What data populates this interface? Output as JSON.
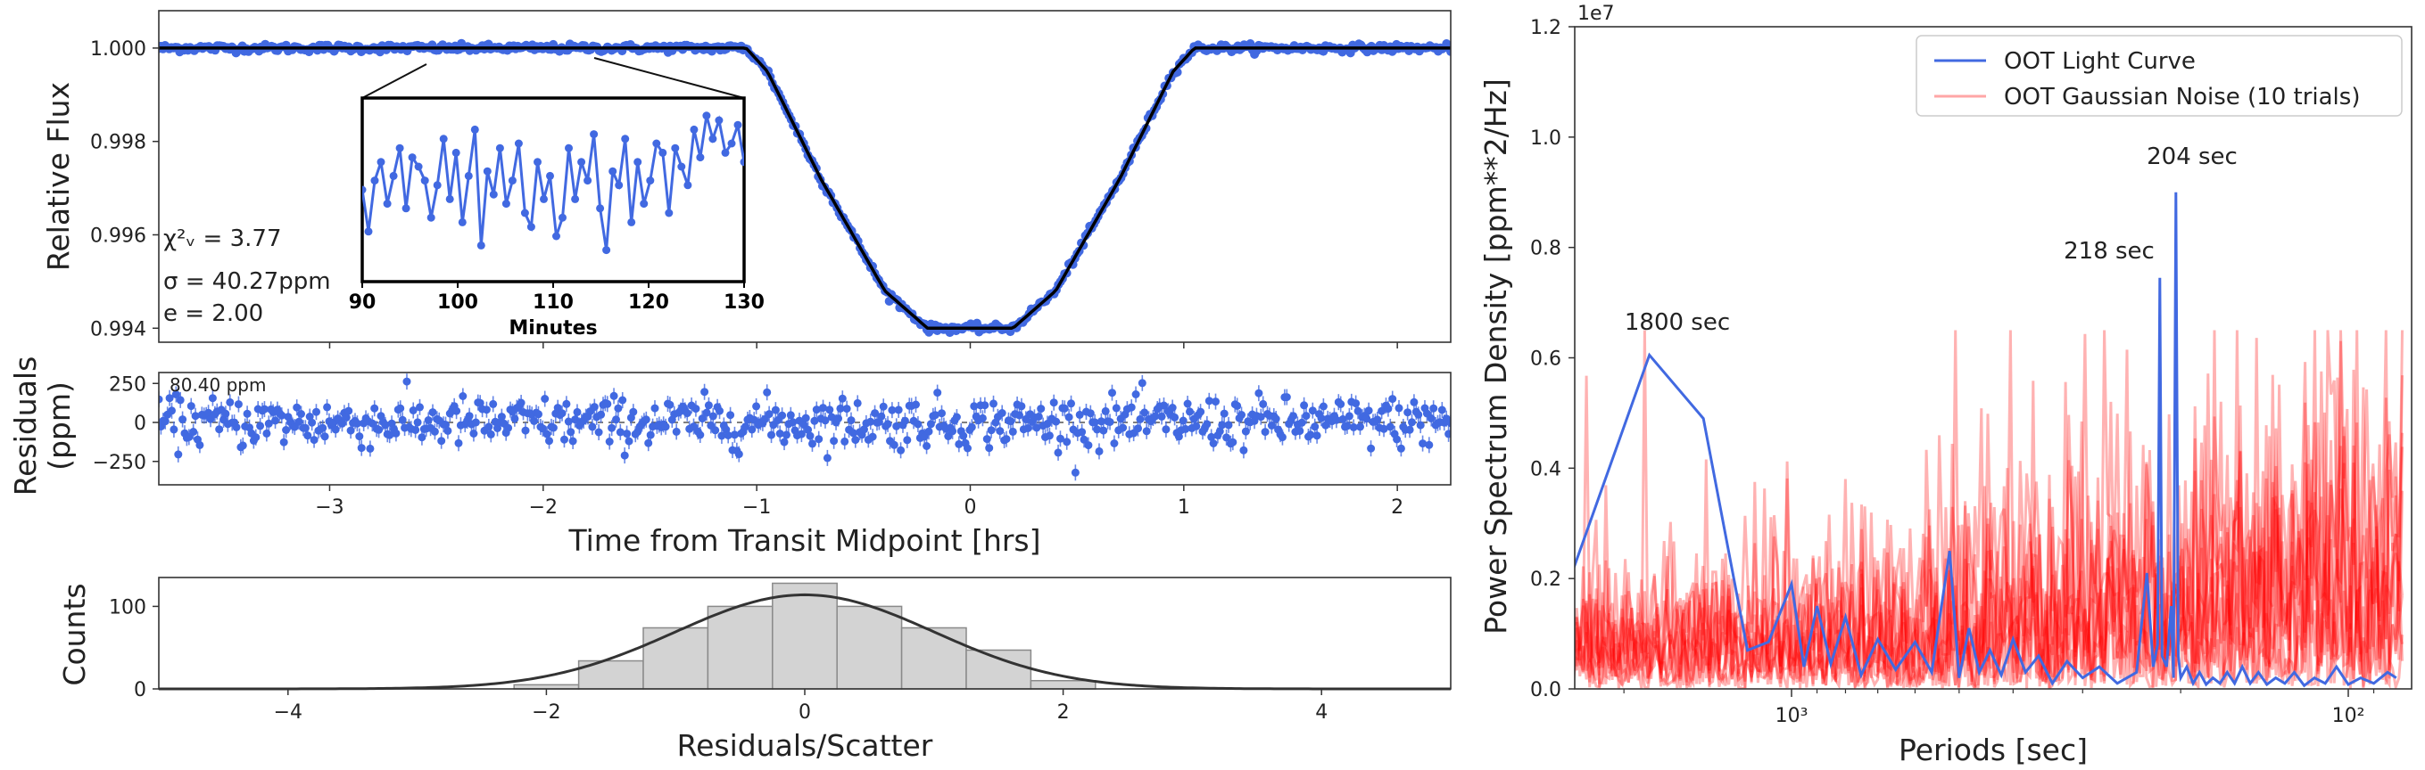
{
  "chart_data": [
    {
      "type": "scatter",
      "title": "",
      "xlabel": "",
      "ylabel": "Relative Flux",
      "xlim": [
        -3.8,
        2.25
      ],
      "ylim": [
        0.9937,
        1.0008
      ],
      "yticks": [
        "1.000",
        "0.998",
        "0.996",
        "0.994"
      ],
      "series": [
        {
          "role": "data",
          "description": "transit light curve points",
          "color": "#4169E1"
        },
        {
          "role": "model",
          "description": "transit model",
          "color": "#000000",
          "x": [
            -3.8,
            -2.0,
            -1.05,
            -0.95,
            -0.7,
            -0.4,
            -0.2,
            0.2,
            0.4,
            0.7,
            0.95,
            1.05,
            2.25
          ],
          "y": [
            1.0,
            1.0,
            1.0,
            0.9995,
            0.9972,
            0.9948,
            0.994,
            0.994,
            0.9948,
            0.9972,
            0.9995,
            1.0,
            1.0
          ]
        }
      ],
      "annotations": [
        "χ²ᵥ = 3.77",
        "σ = 40.27ppm",
        "e = 2.00"
      ],
      "inset": {
        "xlabel": "Minutes",
        "xticks": [
          "90",
          "100",
          "110",
          "120",
          "130"
        ],
        "xlim": [
          90,
          130
        ],
        "color": "#4169E1"
      }
    },
    {
      "type": "scatter",
      "xlabel": "Time from Transit Midpoint [hrs]",
      "ylabel": "Residuals\n(ppm)",
      "xlim": [
        -3.8,
        2.25
      ],
      "ylim": [
        -400,
        320
      ],
      "xticks": [
        "−3",
        "−2",
        "−1",
        "0",
        "1",
        "2"
      ],
      "yticks": [
        "250",
        "0",
        "−250"
      ],
      "annotation": "80.40 ppm",
      "color": "#4169E1"
    },
    {
      "type": "bar",
      "xlabel": "Residuals/Scatter",
      "ylabel": "Counts",
      "xlim": [
        -5,
        5
      ],
      "ylim": [
        0,
        135
      ],
      "xticks": [
        "−4",
        "−2",
        "0",
        "2",
        "4"
      ],
      "yticks": [
        "0",
        "100"
      ],
      "bin_edges": [
        -2.25,
        -1.75,
        -1.25,
        -0.75,
        -0.25,
        0.25,
        0.75,
        1.25,
        1.75,
        2.25
      ],
      "counts": [
        5,
        34,
        74,
        100,
        128,
        100,
        74,
        47,
        10
      ],
      "fit": {
        "type": "gaussian",
        "peak": 114,
        "mu": 0,
        "sigma": 1.0,
        "color": "#333333"
      }
    },
    {
      "type": "line",
      "xlabel": "Periods [sec]",
      "ylabel": "Power Spectrum Density [ppm**2/Hz]",
      "xscale": "log (reversed)",
      "ylim": [
        0,
        12000000.0
      ],
      "yticks": [
        "0.0",
        "0.2",
        "0.4",
        "0.6",
        "0.8",
        "1.0",
        "1.2"
      ],
      "yscale_label": "1e7",
      "xticks": [
        "10³",
        "10²"
      ],
      "legend": {
        "placement": "top-right",
        "entries": [
          "OOT Light Curve",
          "OOT Gaussian Noise (10 trials)"
        ]
      },
      "series": [
        {
          "name": "OOT Light Curve",
          "color": "#4169E1",
          "x": [
            2520,
            1800,
            1440,
            1200,
            1100,
            1000,
            950,
            900,
            850,
            800,
            750,
            700,
            650,
            600,
            560,
            520,
            500,
            480,
            460,
            440,
            420,
            400,
            380,
            360,
            340,
            320,
            300,
            280,
            260,
            240,
            230,
            224,
            220,
            218,
            216,
            212,
            208,
            206,
            204,
            202,
            200,
            195,
            190,
            185,
            180,
            175,
            170,
            165,
            160,
            155,
            150,
            145,
            140,
            135,
            130,
            125,
            120,
            115,
            110,
            105,
            100,
            95,
            90,
            85,
            82
          ],
          "y": [
            1900000,
            6050000,
            4900000,
            700000,
            850000,
            1900000,
            400000,
            1500000,
            450000,
            1300000,
            250000,
            900000,
            350000,
            850000,
            300000,
            2500000,
            200000,
            1100000,
            300000,
            700000,
            250000,
            900000,
            300000,
            600000,
            100000,
            500000,
            200000,
            400000,
            100000,
            300000,
            2100000,
            400000,
            800000,
            7450000,
            600000,
            400000,
            1500000,
            200000,
            9000000,
            600000,
            200000,
            400000,
            100000,
            300000,
            80000,
            200000,
            100000,
            300000,
            100000,
            400000,
            100000,
            300000,
            80000,
            200000,
            100000,
            300000,
            60000,
            200000,
            100000,
            400000,
            80000,
            200000,
            100000,
            300000,
            200000
          ]
        },
        {
          "name": "OOT Gaussian Noise (10 trials)",
          "color": "#ff0000",
          "opacity": 0.3,
          "trials": 10
        }
      ],
      "annotations": [
        {
          "text": "1800 sec",
          "x": 1800
        },
        {
          "text": "218 sec",
          "x": 218
        },
        {
          "text": "204 sec",
          "x": 204
        }
      ]
    }
  ]
}
